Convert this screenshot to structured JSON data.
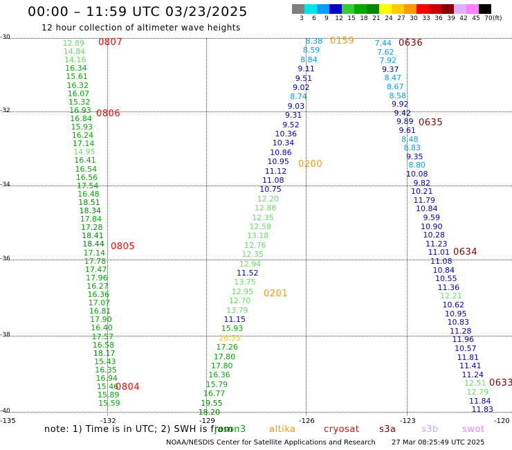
{
  "title": "00:00 – 11:59 UTC 03/23/2025",
  "subtitle": "12 hour collection of altimeter wave heights",
  "colorbar": {
    "unit": "(ft)",
    "bins": [
      {
        "label": "3",
        "color": "#7f7f7f"
      },
      {
        "label": "6",
        "color": "#00e5e5"
      },
      {
        "label": "9",
        "color": "#00a0ff"
      },
      {
        "label": "12",
        "color": "#0000cc"
      },
      {
        "label": "15",
        "color": "#33cc33"
      },
      {
        "label": "18",
        "color": "#00aa00"
      },
      {
        "label": "21",
        "color": "#008800"
      },
      {
        "label": "24",
        "color": "#ffff00"
      },
      {
        "label": "27",
        "color": "#ffcc00"
      },
      {
        "label": "30",
        "color": "#ff9900"
      },
      {
        "label": "33",
        "color": "#ff0000"
      },
      {
        "label": "36",
        "color": "#cc0000"
      },
      {
        "label": "39",
        "color": "#880000"
      },
      {
        "label": "42",
        "color": "#e0b0ff"
      },
      {
        "label": "45",
        "color": "#ff80ff"
      },
      {
        "label": "70",
        "color": "#000000"
      }
    ]
  },
  "axes": {
    "y_ticks": [
      "-30",
      "-32",
      "-34",
      "-36",
      "-38",
      "-40"
    ],
    "x_ticks": [
      "-135",
      "-132",
      "-129",
      "-126",
      "-123",
      "-120"
    ]
  },
  "tracks": [
    {
      "lon": -132.5,
      "color": "#33cc33",
      "values": [
        {
          "lat": -30.1,
          "v": "12.89",
          "c": "#66dd66"
        },
        {
          "lat": -30.3,
          "v": "14.84",
          "c": "#66dd66"
        },
        {
          "lat": -30.5,
          "v": "14.16",
          "c": "#66dd66"
        },
        {
          "lat": -30.7,
          "v": "16.34",
          "c": "#00aa00"
        },
        {
          "lat": -30.9,
          "v": "15.61",
          "c": "#00aa00"
        },
        {
          "lat": -31.1,
          "v": "16.32",
          "c": "#00aa00"
        },
        {
          "lat": -31.3,
          "v": "16.07",
          "c": "#00aa00"
        },
        {
          "lat": -31.5,
          "v": "15.32",
          "c": "#00aa00"
        },
        {
          "lat": -31.7,
          "v": "16.93",
          "c": "#00aa00"
        },
        {
          "lat": -31.85,
          "v": "16.84",
          "c": "#00aa00"
        },
        {
          "lat": -32.1,
          "v": "15.93",
          "c": "#00aa00"
        },
        {
          "lat": -32.3,
          "v": "16.24",
          "c": "#00aa00"
        },
        {
          "lat": -32.5,
          "v": "17.14",
          "c": "#00aa00"
        },
        {
          "lat": -32.7,
          "v": "14.95",
          "c": "#66dd66"
        },
        {
          "lat": -32.9,
          "v": "16.41",
          "c": "#00aa00"
        },
        {
          "lat": -33.1,
          "v": "16.54",
          "c": "#00aa00"
        },
        {
          "lat": -33.3,
          "v": "16.56",
          "c": "#00aa00"
        },
        {
          "lat": -33.5,
          "v": "17.54",
          "c": "#00aa00"
        },
        {
          "lat": -33.7,
          "v": "16.48",
          "c": "#00aa00"
        },
        {
          "lat": -33.9,
          "v": "18.51",
          "c": "#008800"
        },
        {
          "lat": -34.1,
          "v": "18.34",
          "c": "#008800"
        },
        {
          "lat": -34.3,
          "v": "17.84",
          "c": "#00aa00"
        },
        {
          "lat": -34.5,
          "v": "17.28",
          "c": "#00aa00"
        },
        {
          "lat": -34.7,
          "v": "18.41",
          "c": "#008800"
        },
        {
          "lat": -34.9,
          "v": "18.44",
          "c": "#008800"
        },
        {
          "lat": -35.05,
          "v": "17.14",
          "c": "#00aa00"
        },
        {
          "lat": -35.25,
          "v": "17.78",
          "c": "#00aa00"
        },
        {
          "lat": -35.45,
          "v": "17.47",
          "c": "#00aa00"
        },
        {
          "lat": -35.65,
          "v": "17.96",
          "c": "#00aa00"
        },
        {
          "lat": -35.85,
          "v": "16.27",
          "c": "#00aa00"
        },
        {
          "lat": -36.05,
          "v": "16.36",
          "c": "#00aa00"
        },
        {
          "lat": -36.25,
          "v": "17.07",
          "c": "#00aa00"
        },
        {
          "lat": -36.45,
          "v": "16.81",
          "c": "#00aa00"
        },
        {
          "lat": -36.65,
          "v": "17.90",
          "c": "#00aa00"
        },
        {
          "lat": -36.85,
          "v": "16.40",
          "c": "#00aa00"
        },
        {
          "lat": -37.05,
          "v": "17.57",
          "c": "#00aa00"
        },
        {
          "lat": -37.25,
          "v": "16.58",
          "c": "#00aa00"
        },
        {
          "lat": -37.45,
          "v": "18.17",
          "c": "#008800"
        },
        {
          "lat": -37.65,
          "v": "15.43",
          "c": "#00aa00"
        },
        {
          "lat": -37.85,
          "v": "16.35",
          "c": "#00aa00"
        },
        {
          "lat": -38.05,
          "v": "16.94",
          "c": "#00aa00"
        },
        {
          "lat": -38.25,
          "v": "15.46",
          "c": "#00aa00"
        },
        {
          "lat": -38.45,
          "v": "15.89",
          "c": "#00aa00"
        },
        {
          "lat": -38.65,
          "v": "15.59",
          "c": "#00aa00"
        }
      ]
    }
  ],
  "track_labels": [
    {
      "text": "0807",
      "color": "#ff0000"
    },
    {
      "text": "0806",
      "color": "#ff0000"
    },
    {
      "text": "0805",
      "color": "#ff0000"
    },
    {
      "text": "0804",
      "color": "#ff0000"
    },
    {
      "text": "0159",
      "color": "#ff9900"
    },
    {
      "text": "0200",
      "color": "#ff9900"
    },
    {
      "text": "0201",
      "color": "#ff9900"
    },
    {
      "text": "0636",
      "color": "#880000"
    },
    {
      "text": "0635",
      "color": "#880000"
    },
    {
      "text": "0634",
      "color": "#880000"
    },
    {
      "text": "0633",
      "color": "#880000"
    }
  ],
  "mid_track": [
    {
      "v": "8.38",
      "c": "#00a0ff"
    },
    {
      "v": "8.59",
      "c": "#00a0ff"
    },
    {
      "v": "8.84",
      "c": "#00a0ff"
    },
    {
      "v": "9.11",
      "c": "#0000cc"
    },
    {
      "v": "9.51",
      "c": "#0000cc"
    },
    {
      "v": "9.02",
      "c": "#0000cc"
    },
    {
      "v": "8.74",
      "c": "#00a0ff"
    },
    {
      "v": "9.03",
      "c": "#0000cc"
    },
    {
      "v": "9.31",
      "c": "#0000cc"
    },
    {
      "v": "9.52",
      "c": "#0000cc"
    },
    {
      "v": "10.36",
      "c": "#0000cc"
    },
    {
      "v": "10.34",
      "c": "#0000cc"
    },
    {
      "v": "10.86",
      "c": "#0000cc"
    },
    {
      "v": "10.95",
      "c": "#0000cc"
    },
    {
      "v": "11.12",
      "c": "#0000cc"
    },
    {
      "v": "11.08",
      "c": "#0000cc"
    },
    {
      "v": "10.75",
      "c": "#0000cc"
    },
    {
      "v": "12.20",
      "c": "#66dd66"
    },
    {
      "v": "12.86",
      "c": "#66dd66"
    },
    {
      "v": "12.35",
      "c": "#66dd66"
    },
    {
      "v": "12.58",
      "c": "#66dd66"
    },
    {
      "v": "13.18",
      "c": "#66dd66"
    },
    {
      "v": "12.76",
      "c": "#66dd66"
    },
    {
      "v": "12.35",
      "c": "#66dd66"
    },
    {
      "v": "12.94",
      "c": "#66dd66"
    },
    {
      "v": "11.52",
      "c": "#0000cc"
    },
    {
      "v": "13.75",
      "c": "#66dd66"
    },
    {
      "v": "12.95",
      "c": "#66dd66"
    },
    {
      "v": "12.70",
      "c": "#66dd66"
    },
    {
      "v": "13.79",
      "c": "#66dd66"
    },
    {
      "v": "11.15",
      "c": "#0000cc"
    },
    {
      "v": "15.93",
      "c": "#00aa00"
    },
    {
      "v": "26.53",
      "c": "#ffcc00"
    },
    {
      "v": "17.26",
      "c": "#00aa00"
    },
    {
      "v": "17.80",
      "c": "#00aa00"
    },
    {
      "v": "17.80",
      "c": "#00aa00"
    },
    {
      "v": "16.36",
      "c": "#00aa00"
    },
    {
      "v": "15.79",
      "c": "#00aa00"
    },
    {
      "v": "16.77",
      "c": "#00aa00"
    },
    {
      "v": "19.55",
      "c": "#008800"
    },
    {
      "v": "18.20",
      "c": "#008800"
    }
  ],
  "east_track": [
    {
      "v": "7.44",
      "c": "#00a0ff"
    },
    {
      "v": "7.62",
      "c": "#00a0ff"
    },
    {
      "v": "7.92",
      "c": "#00a0ff"
    },
    {
      "v": "9.37",
      "c": "#0000cc"
    },
    {
      "v": "8.47",
      "c": "#00a0ff"
    },
    {
      "v": "8.67",
      "c": "#00a0ff"
    },
    {
      "v": "8.58",
      "c": "#00a0ff"
    },
    {
      "v": "9.92",
      "c": "#0000cc"
    },
    {
      "v": "9.42",
      "c": "#0000cc"
    },
    {
      "v": "9.89",
      "c": "#0000cc"
    },
    {
      "v": "9.61",
      "c": "#0000cc"
    },
    {
      "v": "8.48",
      "c": "#00a0ff"
    },
    {
      "v": "8.83",
      "c": "#00a0ff"
    },
    {
      "v": "9.35",
      "c": "#0000cc"
    },
    {
      "v": "8.80",
      "c": "#00a0ff"
    },
    {
      "v": "10.08",
      "c": "#0000cc"
    },
    {
      "v": "9.82",
      "c": "#0000cc"
    },
    {
      "v": "10.21",
      "c": "#0000cc"
    },
    {
      "v": "11.79",
      "c": "#0000cc"
    },
    {
      "v": "10.84",
      "c": "#0000cc"
    },
    {
      "v": "9.59",
      "c": "#0000cc"
    },
    {
      "v": "10.90",
      "c": "#0000cc"
    },
    {
      "v": "10.28",
      "c": "#0000cc"
    },
    {
      "v": "11.23",
      "c": "#0000cc"
    },
    {
      "v": "11.01",
      "c": "#0000cc"
    },
    {
      "v": "11.08",
      "c": "#0000cc"
    },
    {
      "v": "10.84",
      "c": "#0000cc"
    },
    {
      "v": "10.55",
      "c": "#0000cc"
    },
    {
      "v": "11.36",
      "c": "#0000cc"
    },
    {
      "v": "12.21",
      "c": "#66dd66"
    },
    {
      "v": "10.62",
      "c": "#0000cc"
    },
    {
      "v": "10.95",
      "c": "#0000cc"
    },
    {
      "v": "10.83",
      "c": "#0000cc"
    },
    {
      "v": "11.28",
      "c": "#0000cc"
    },
    {
      "v": "11.96",
      "c": "#0000cc"
    },
    {
      "v": "10.57",
      "c": "#0000cc"
    },
    {
      "v": "11.81",
      "c": "#0000cc"
    },
    {
      "v": "11.41",
      "c": "#0000cc"
    },
    {
      "v": "11.24",
      "c": "#0000cc"
    },
    {
      "v": "12.51",
      "c": "#66dd66"
    },
    {
      "v": "12.79",
      "c": "#66dd66"
    },
    {
      "v": "11.84",
      "c": "#0000cc"
    },
    {
      "v": "11.83",
      "c": "#0000cc"
    }
  ],
  "note": "note: 1) Time is in UTC; 2) SWH is from",
  "satellites": [
    {
      "name": "jason3",
      "color": "#00aa00"
    },
    {
      "name": "altika",
      "color": "#ff9900"
    },
    {
      "name": "cryosat",
      "color": "#ff0000"
    },
    {
      "name": "s3a",
      "color": "#880000"
    },
    {
      "name": "s3b",
      "color": "#c8a8f0"
    },
    {
      "name": "swot",
      "color": "#ff80ff"
    }
  ],
  "footer_left": "NOAA/NESDIS Center for Satellite Applications and Research",
  "footer_right": "27 Mar 08:25:49 UTC 2025"
}
